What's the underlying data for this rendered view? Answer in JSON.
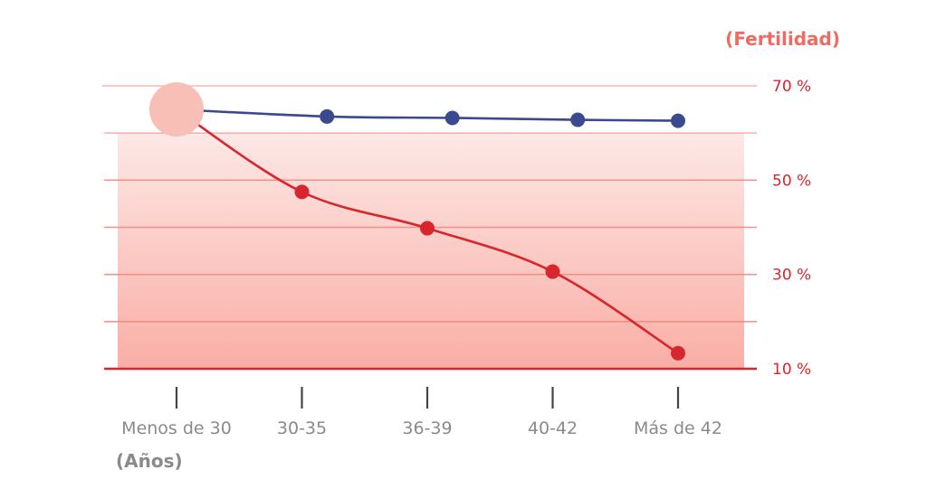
{
  "chart_data": {
    "type": "line",
    "ylabel": "(Fertilidad)",
    "xlabel": "(Años)",
    "categories": [
      "Menos de 30",
      "30-35",
      "36-39",
      "40-42",
      "Más de 42"
    ],
    "y_ticks": [
      {
        "value": 70,
        "label": "70 %"
      },
      {
        "value": 50,
        "label": "50 %"
      },
      {
        "value": 30,
        "label": "30 %"
      },
      {
        "value": 10,
        "label": "10 %"
      }
    ],
    "ylim": [
      10,
      70
    ],
    "grid": true,
    "series": [
      {
        "color": "#3b4a8f",
        "points": [
          [
            0,
            65
          ],
          [
            1.2,
            63.5
          ],
          [
            2.2,
            63.2
          ],
          [
            3.2,
            62.8
          ],
          [
            4.0,
            62.6
          ]
        ]
      },
      {
        "color": "#d8262e",
        "points": [
          [
            0,
            65
          ],
          [
            1.0,
            47.5
          ],
          [
            2.0,
            39.8
          ],
          [
            3.0,
            30.6
          ],
          [
            4.0,
            13.3
          ]
        ]
      }
    ],
    "start_marker_color": "#f8bfb6",
    "colors": {
      "gridline": "#f08a80",
      "baseline": "#d8262e",
      "band_light": "#fde8e6",
      "band_dark": "#f9aea5"
    }
  }
}
